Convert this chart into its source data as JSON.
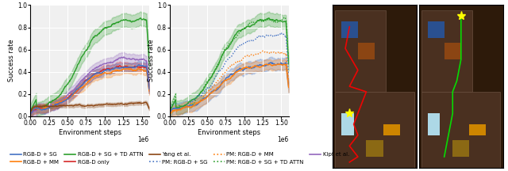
{
  "title": "",
  "xlim": [
    0,
    1600000
  ],
  "ylim": [
    0.0,
    1.0
  ],
  "xlabel": "Environment steps",
  "ylabel": "Success rate",
  "colors": {
    "blue": "#4472C4",
    "orange": "#FF7F0E",
    "green": "#2CA02C",
    "red": "#D62728",
    "brown": "#8B4513",
    "purple": "#9467BD"
  },
  "legend_entries": [
    {
      "label": "RGB-D + SG",
      "color": "#4472C4",
      "linestyle": "solid"
    },
    {
      "label": "RGB-D + MM",
      "color": "#FF7F0E",
      "linestyle": "solid"
    },
    {
      "label": "RGB-D + SG + TD ATTN",
      "color": "#2CA02C",
      "linestyle": "solid"
    },
    {
      "label": "RGB-D only",
      "color": "#D62728",
      "linestyle": "solid"
    },
    {
      "label": "Yang et al.",
      "color": "#8B4513",
      "linestyle": "solid"
    },
    {
      "label": "PM: RGB-D + SG",
      "color": "#4472C4",
      "linestyle": "dotted"
    },
    {
      "label": "PM: RGB-D + MM",
      "color": "#FF7F0E",
      "linestyle": "dotted"
    },
    {
      "label": "PM: RGB-D + SG + TD ATTN",
      "color": "#2CA02C",
      "linestyle": "dotted"
    },
    {
      "label": "Kipf et al.",
      "color": "#9467BD",
      "linestyle": "solid"
    }
  ],
  "xticks": [
    0.0,
    0.25,
    0.5,
    0.75,
    1.0,
    1.25,
    1.5
  ],
  "xtick_labels": [
    "0.00",
    "0.25",
    "0.50",
    "0.75",
    "1.00",
    "1.25",
    "1.50"
  ],
  "xtick_exp": "1e6",
  "yticks": [
    0.0,
    0.2,
    0.4,
    0.6,
    0.8,
    1.0
  ],
  "bg_color": "#f0f0f0",
  "grid_color": "white"
}
